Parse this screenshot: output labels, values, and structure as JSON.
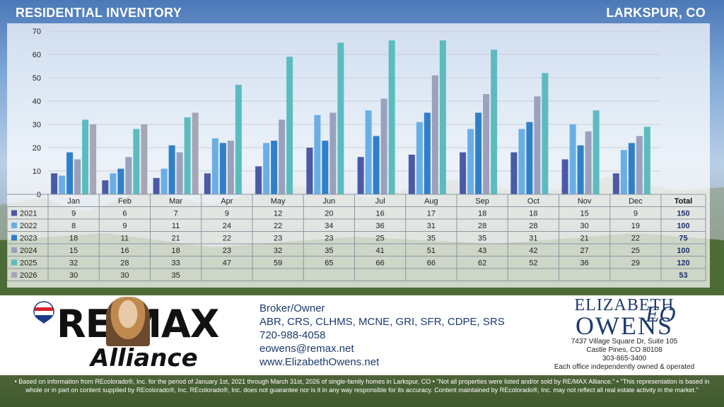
{
  "header": {
    "title": "RESIDENTIAL INVENTORY",
    "location": "LARKSPUR, CO"
  },
  "colors": {
    "2021": "#4a5aa6",
    "2022": "#6aaee6",
    "2023": "#2f80c9",
    "2024": "#9aa1bd",
    "2025": "#5bbcbf",
    "2026": "#a6a6b7",
    "total": "#1d2f6b"
  },
  "chart_data": {
    "type": "bar",
    "categories": [
      "Jan",
      "Feb",
      "Mar",
      "Apr",
      "May",
      "Jun",
      "Jul",
      "Aug",
      "Sep",
      "Oct",
      "Nov",
      "Dec"
    ],
    "ylim": [
      0,
      70
    ],
    "yticks": [
      0,
      10,
      20,
      30,
      40,
      50,
      60,
      70
    ],
    "series": [
      {
        "name": "2021",
        "values": [
          9,
          6,
          7,
          9,
          12,
          20,
          16,
          17,
          18,
          18,
          15,
          9
        ],
        "total": "150"
      },
      {
        "name": "2022",
        "values": [
          8,
          9,
          11,
          24,
          22,
          34,
          36,
          31,
          28,
          28,
          30,
          19
        ],
        "total": "100"
      },
      {
        "name": "2023",
        "values": [
          18,
          11,
          21,
          22,
          23,
          23,
          25,
          35,
          35,
          31,
          21,
          22
        ],
        "total": "75"
      },
      {
        "name": "2024",
        "values": [
          15,
          16,
          18,
          23,
          32,
          35,
          41,
          51,
          43,
          42,
          27,
          25
        ],
        "total": "100"
      },
      {
        "name": "2025",
        "values": [
          32,
          28,
          33,
          47,
          59,
          65,
          66,
          66,
          62,
          52,
          36,
          29
        ],
        "total": "120"
      },
      {
        "name": "2026",
        "values": [
          30,
          30,
          35,
          null,
          null,
          null,
          null,
          null,
          null,
          null,
          null,
          null
        ],
        "total": "53"
      }
    ],
    "total_label": "Total",
    "grid": true
  },
  "agent": {
    "brand_line1": "RE/MAX",
    "brand_line2": "Alliance",
    "role": "Broker/Owner",
    "designations": "ABR, CRS, CLHMS, MCNE, GRI, SFR, CDPE, SRS",
    "phone": "720-988-4058",
    "email": "eowens@remax.net",
    "website": "www.ElizabethOwens.net"
  },
  "branding": {
    "name_first": "ELIZABETH",
    "name_last": "OWENS",
    "monogram": "EO",
    "address1": "7437 Village Square Dr, Suite 105",
    "address2": "Castle Pines, CO 80108",
    "phone": "303-865-3400",
    "tagline": "Each office independently owned & operated"
  },
  "disclaimer": "• Based on information from REcolorado®, Inc. for the period of January 1st, 2021 through March 31st, 2026 of single-family homes in Larkspur, CO • \"Not all properties were listed and/or sold by RE/MAX Alliance.\" • \"This representation is based in whole or in part on content supplied by REcolorado®, Inc. REcolorado®, Inc. does not guarantee nor is it in any way responsible for its accuracy. Content maintained by REcolorado®, Inc. may not reflect all real estate activity in the market.\""
}
